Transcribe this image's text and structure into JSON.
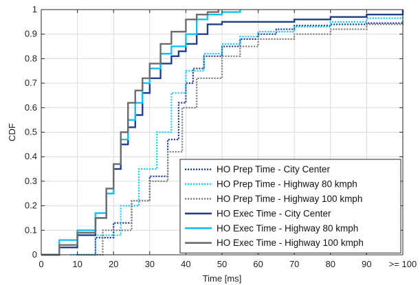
{
  "chart_data": {
    "type": "line",
    "xlabel": "Time [ms]",
    "ylabel": "CDF",
    "xlim": [
      0,
      100
    ],
    "ylim": [
      0,
      1
    ],
    "grid": true,
    "legend_position": "bottom-right",
    "x_ticks": [
      {
        "value": 0,
        "label": "0"
      },
      {
        "value": 10,
        "label": "10"
      },
      {
        "value": 20,
        "label": "20"
      },
      {
        "value": 30,
        "label": "30"
      },
      {
        "value": 40,
        "label": "40"
      },
      {
        "value": 50,
        "label": "50"
      },
      {
        "value": 60,
        "label": "60"
      },
      {
        "value": 70,
        "label": "70"
      },
      {
        "value": 80,
        "label": "80"
      },
      {
        "value": 90,
        "label": "90"
      },
      {
        "value": 100,
        "label": ">= 100"
      }
    ],
    "y_ticks": [
      {
        "value": 0,
        "label": "0"
      },
      {
        "value": 0.1,
        "label": "0.1"
      },
      {
        "value": 0.2,
        "label": "0.2"
      },
      {
        "value": 0.3,
        "label": "0.3"
      },
      {
        "value": 0.4,
        "label": "0.4"
      },
      {
        "value": 0.5,
        "label": "0.5"
      },
      {
        "value": 0.6,
        "label": "0.6"
      },
      {
        "value": 0.7,
        "label": "0.7"
      },
      {
        "value": 0.8,
        "label": "0.8"
      },
      {
        "value": 0.9,
        "label": "0.9"
      },
      {
        "value": 1,
        "label": "1"
      }
    ],
    "series": [
      {
        "name": "HO Prep Time - City Center",
        "color": "#1f3f8a",
        "style": "dotted",
        "x": [
          10,
          15,
          20,
          25,
          30,
          35,
          38,
          40,
          42,
          45,
          50,
          55,
          60,
          65,
          70,
          80,
          90,
          100
        ],
        "y": [
          0,
          0.07,
          0.13,
          0.22,
          0.32,
          0.47,
          0.62,
          0.7,
          0.76,
          0.81,
          0.85,
          0.88,
          0.9,
          0.92,
          0.935,
          0.94,
          0.945,
          0.95
        ]
      },
      {
        "name": "HO Prep Time - Highway 80 kmph",
        "color": "#22c5ee",
        "style": "dotted",
        "x": [
          8,
          15,
          22,
          27,
          32,
          36,
          40,
          45,
          50,
          55,
          60,
          70,
          80,
          90,
          100
        ],
        "y": [
          0,
          0.08,
          0.2,
          0.35,
          0.5,
          0.66,
          0.75,
          0.82,
          0.86,
          0.89,
          0.91,
          0.93,
          0.95,
          0.965,
          0.975
        ]
      },
      {
        "name": "HO Prep Time - Highway 100 kmph",
        "color": "#7f7f7f",
        "style": "dotted",
        "x": [
          10,
          17,
          25,
          30,
          35,
          39,
          43,
          50,
          55,
          60,
          70,
          80,
          90,
          100
        ],
        "y": [
          0,
          0.1,
          0.22,
          0.3,
          0.42,
          0.6,
          0.72,
          0.81,
          0.85,
          0.88,
          0.9,
          0.92,
          0.94,
          0.96
        ]
      },
      {
        "name": "HO Exec Time - City Center",
        "color": "#1f3f8a",
        "style": "solid",
        "x": [
          0,
          5,
          10,
          15,
          18,
          20,
          22,
          24,
          26,
          28,
          30,
          33,
          36,
          38,
          40,
          43,
          46,
          50,
          55,
          60,
          70,
          80,
          90,
          100
        ],
        "y": [
          0,
          0.03,
          0.08,
          0.15,
          0.25,
          0.35,
          0.45,
          0.52,
          0.57,
          0.66,
          0.72,
          0.78,
          0.81,
          0.83,
          0.86,
          0.9,
          0.94,
          0.95,
          0.95,
          0.95,
          0.96,
          0.97,
          0.98,
          1.0
        ]
      },
      {
        "name": "HO Exec Time - Highway 80 kmph",
        "color": "#10bff5",
        "style": "solid",
        "x": [
          0,
          5,
          10,
          15,
          18,
          20,
          22,
          24,
          26,
          28,
          30,
          33,
          36,
          40,
          43,
          46,
          50,
          55
        ],
        "y": [
          0,
          0.06,
          0.1,
          0.17,
          0.25,
          0.37,
          0.47,
          0.55,
          0.62,
          0.7,
          0.76,
          0.82,
          0.85,
          0.9,
          0.96,
          0.98,
          0.99,
          1.0
        ]
      },
      {
        "name": "HO Exec Time - Highway 100 kmph",
        "color": "#6c6c6c",
        "style": "solid",
        "x": [
          0,
          5,
          10,
          15,
          18,
          20,
          22,
          24,
          26,
          28,
          30,
          33,
          36,
          40,
          43,
          46,
          49
        ],
        "y": [
          0,
          0.04,
          0.09,
          0.15,
          0.27,
          0.37,
          0.5,
          0.62,
          0.67,
          0.72,
          0.78,
          0.86,
          0.91,
          0.96,
          0.98,
          0.99,
          1.0
        ]
      }
    ]
  }
}
